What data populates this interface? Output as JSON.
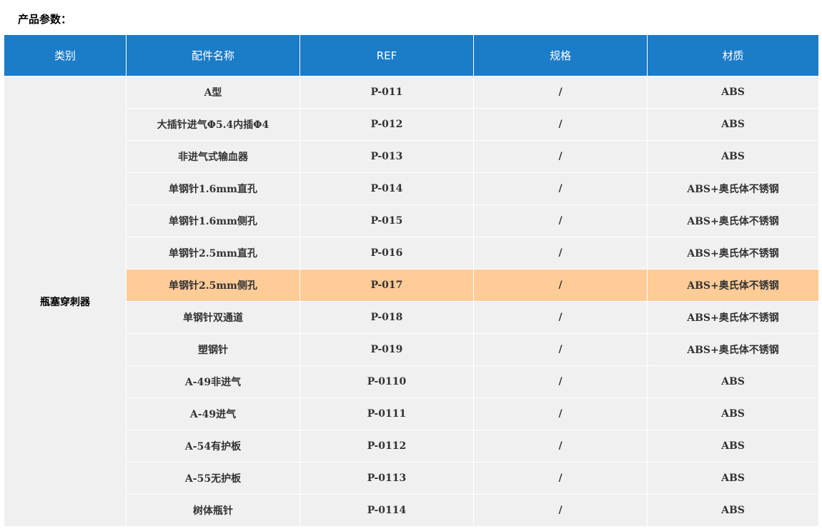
{
  "title": "产品参数：",
  "headers": [
    "类别",
    "配件名称",
    "REF",
    "规格",
    "材质"
  ],
  "category": "瓶塞穿刺器",
  "highlight_color": "#ffcb97",
  "header_color": "#1b7cc8",
  "rows": [
    {
      "name": "A型",
      "ref": "P-011",
      "spec": "/",
      "material": "ABS"
    },
    {
      "name": "大插针进气Φ5.4内插Φ4",
      "ref": "P-012",
      "spec": "/",
      "material": "ABS"
    },
    {
      "name": "非进气式输血器",
      "ref": "P-013",
      "spec": "/",
      "material": "ABS"
    },
    {
      "name": "单钢针1.6mm直孔",
      "ref": "P-014",
      "spec": "/",
      "material": "ABS+奥氏体不锈钢"
    },
    {
      "name": "单钢针1.6mm侧孔",
      "ref": "P-015",
      "spec": "/",
      "material": "ABS+奥氏体不锈钢"
    },
    {
      "name": "单钢针2.5mm直孔",
      "ref": "P-016",
      "spec": "/",
      "material": "ABS+奥氏体不锈钢"
    },
    {
      "name": "单钢针2.5mm侧孔",
      "ref": "P-017",
      "spec": "/",
      "material": "ABS+奥氏体不锈钢",
      "highlighted": true
    },
    {
      "name": "单钢针双通道",
      "ref": "P-018",
      "spec": "/",
      "material": "ABS+奥氏体不锈钢"
    },
    {
      "name": "塑钢针",
      "ref": "P-019",
      "spec": "/",
      "material": "ABS+奥氏体不锈钢"
    },
    {
      "name": "A-49非进气",
      "ref": "P-0110",
      "spec": "/",
      "material": "ABS"
    },
    {
      "name": "A-49进气",
      "ref": "P-0111",
      "spec": "/",
      "material": "ABS"
    },
    {
      "name": "A-54有护板",
      "ref": "P-0112",
      "spec": "/",
      "material": "ABS"
    },
    {
      "name": "A-55无护板",
      "ref": "P-0113",
      "spec": "/",
      "material": "ABS"
    },
    {
      "name": "树体瓶针",
      "ref": "P-0114",
      "spec": "/",
      "material": "ABS"
    }
  ]
}
